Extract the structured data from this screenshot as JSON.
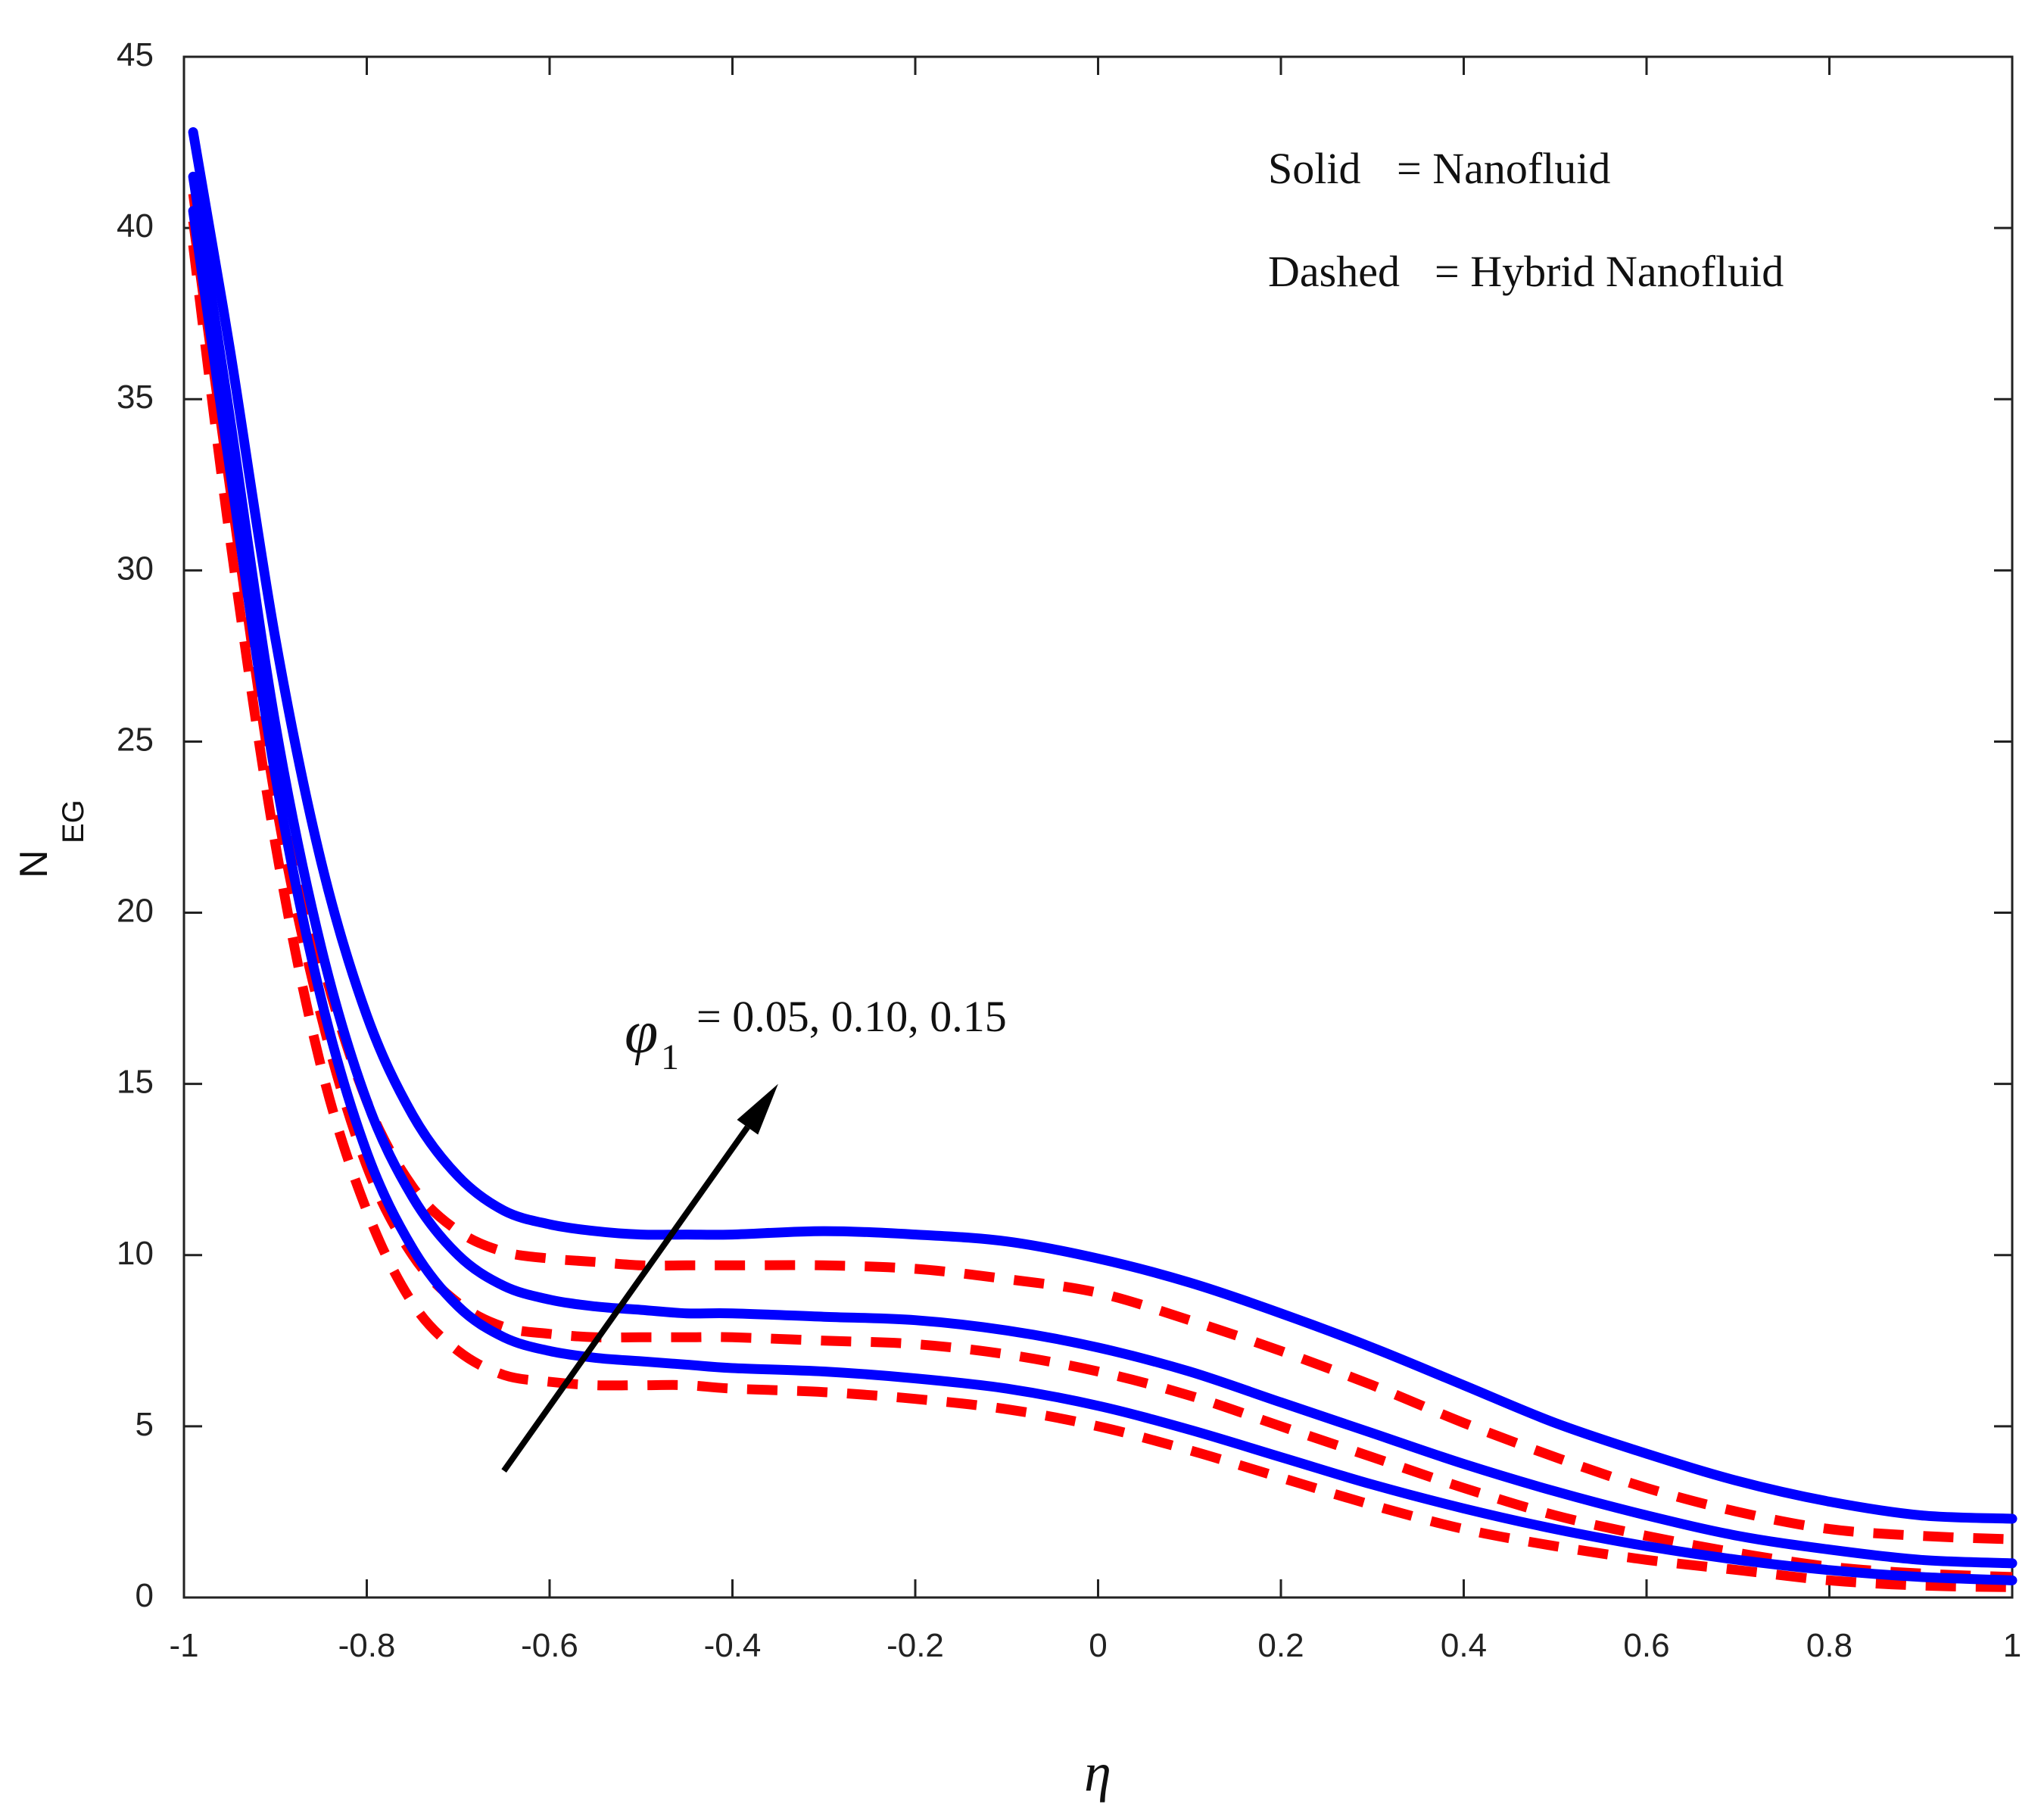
{
  "chart_data": {
    "type": "line",
    "title": "",
    "xlabel": "η",
    "ylabel_main": "N",
    "ylabel_sub": "EG",
    "xlim": [
      -1,
      1
    ],
    "ylim": [
      0,
      45
    ],
    "x_ticks": [
      -1,
      -0.8,
      -0.6,
      -0.4,
      -0.2,
      0,
      0.2,
      0.4,
      0.6,
      0.8,
      1
    ],
    "x_tick_labels": [
      "-1",
      "-0.8",
      "-0.6",
      "-0.4",
      "-0.2",
      "0",
      "0.2",
      "0.4",
      "0.6",
      "0.8",
      "1"
    ],
    "y_ticks": [
      0,
      5,
      10,
      15,
      20,
      25,
      30,
      35,
      40,
      45
    ],
    "y_tick_labels": [
      "0",
      "5",
      "10",
      "15",
      "20",
      "25",
      "30",
      "35",
      "40",
      "45"
    ],
    "grid": false,
    "legend": {
      "placement": "top-right",
      "solid_label": "Solid",
      "solid_value": "= Nanofluid",
      "dashed_label": "Dashed",
      "dashed_value": "= Hybrid Nanofluid"
    },
    "annotation": {
      "symbol": "φ",
      "subscript": "1",
      "text": "= 0.05, 0.10, 0.15",
      "arrow_from": {
        "x": -0.65,
        "y": 3.7
      },
      "arrow_to": {
        "x": -0.35,
        "y": 15
      }
    },
    "series": [
      {
        "name": "Nanofluid φ1 = 0.05",
        "style": "solid",
        "color": "#0000ff",
        "x": [
          -0.99,
          -0.95,
          -0.9,
          -0.85,
          -0.8,
          -0.75,
          -0.7,
          -0.65,
          -0.6,
          -0.55,
          -0.5,
          -0.45,
          -0.4,
          -0.3,
          -0.2,
          -0.1,
          0,
          0.1,
          0.2,
          0.3,
          0.4,
          0.5,
          0.6,
          0.7,
          0.8,
          0.9,
          1.0
        ],
        "y": [
          40.5,
          33,
          24,
          17.5,
          13,
          10.2,
          8.5,
          7.6,
          7.2,
          7.0,
          6.9,
          6.8,
          6.7,
          6.6,
          6.4,
          6.1,
          5.6,
          4.9,
          4.1,
          3.3,
          2.6,
          2.0,
          1.5,
          1.1,
          0.8,
          0.6,
          0.5
        ]
      },
      {
        "name": "Nanofluid φ1 = 0.10",
        "style": "solid",
        "color": "#0000ff",
        "x": [
          -0.99,
          -0.95,
          -0.9,
          -0.85,
          -0.8,
          -0.75,
          -0.7,
          -0.65,
          -0.6,
          -0.55,
          -0.5,
          -0.45,
          -0.4,
          -0.3,
          -0.2,
          -0.1,
          0,
          0.1,
          0.2,
          0.3,
          0.4,
          0.5,
          0.6,
          0.7,
          0.8,
          0.9,
          1.0
        ],
        "y": [
          41.5,
          34.5,
          25.5,
          19,
          14.5,
          11.7,
          10.0,
          9.1,
          8.7,
          8.5,
          8.4,
          8.3,
          8.3,
          8.2,
          8.1,
          7.8,
          7.3,
          6.6,
          5.7,
          4.8,
          3.9,
          3.1,
          2.4,
          1.8,
          1.4,
          1.1,
          1.0
        ]
      },
      {
        "name": "Nanofluid φ1 = 0.15",
        "style": "solid",
        "color": "#0000ff",
        "x": [
          -0.99,
          -0.95,
          -0.9,
          -0.85,
          -0.8,
          -0.75,
          -0.7,
          -0.65,
          -0.6,
          -0.55,
          -0.5,
          -0.45,
          -0.4,
          -0.3,
          -0.2,
          -0.1,
          0,
          0.1,
          0.2,
          0.3,
          0.4,
          0.5,
          0.6,
          0.7,
          0.8,
          0.9,
          1.0
        ],
        "y": [
          42.8,
          36.5,
          28,
          21.5,
          17,
          14.1,
          12.3,
          11.3,
          10.9,
          10.7,
          10.6,
          10.6,
          10.6,
          10.7,
          10.6,
          10.4,
          9.9,
          9.2,
          8.3,
          7.3,
          6.2,
          5.1,
          4.2,
          3.4,
          2.8,
          2.4,
          2.3
        ]
      },
      {
        "name": "Hybrid Nanofluid φ1 = 0.05",
        "style": "dashed",
        "color": "#ff0000",
        "x": [
          -0.99,
          -0.95,
          -0.9,
          -0.85,
          -0.8,
          -0.75,
          -0.7,
          -0.65,
          -0.6,
          -0.55,
          -0.5,
          -0.45,
          -0.4,
          -0.3,
          -0.2,
          -0.1,
          0,
          0.1,
          0.2,
          0.3,
          0.4,
          0.5,
          0.6,
          0.7,
          0.8,
          0.9,
          1.0
        ],
        "y": [
          39.5,
          31,
          22,
          15.5,
          11.3,
          8.6,
          7.2,
          6.5,
          6.3,
          6.2,
          6.2,
          6.2,
          6.1,
          6.0,
          5.8,
          5.5,
          5.0,
          4.3,
          3.5,
          2.7,
          2.0,
          1.5,
          1.1,
          0.8,
          0.5,
          0.35,
          0.3
        ]
      },
      {
        "name": "Hybrid Nanofluid φ1 = 0.10",
        "style": "dashed",
        "color": "#ff0000",
        "x": [
          -0.99,
          -0.95,
          -0.9,
          -0.85,
          -0.8,
          -0.75,
          -0.7,
          -0.65,
          -0.6,
          -0.55,
          -0.5,
          -0.45,
          -0.4,
          -0.3,
          -0.2,
          -0.1,
          0,
          0.1,
          0.2,
          0.3,
          0.4,
          0.5,
          0.6,
          0.7,
          0.8,
          0.9,
          1.0
        ],
        "y": [
          40.2,
          32.5,
          23.3,
          17,
          12.6,
          10.0,
          8.6,
          7.9,
          7.7,
          7.6,
          7.6,
          7.6,
          7.6,
          7.5,
          7.4,
          7.1,
          6.6,
          5.9,
          5.0,
          4.1,
          3.2,
          2.4,
          1.8,
          1.3,
          0.9,
          0.7,
          0.6
        ]
      },
      {
        "name": "Hybrid Nanofluid φ1 = 0.15",
        "style": "dashed",
        "color": "#ff0000",
        "x": [
          -0.99,
          -0.95,
          -0.9,
          -0.85,
          -0.8,
          -0.75,
          -0.7,
          -0.65,
          -0.6,
          -0.55,
          -0.5,
          -0.45,
          -0.4,
          -0.3,
          -0.2,
          -0.1,
          0,
          0.1,
          0.2,
          0.3,
          0.4,
          0.5,
          0.6,
          0.7,
          0.8,
          0.9,
          1.0
        ],
        "y": [
          41.0,
          33.5,
          24.8,
          18.7,
          14.5,
          12.0,
          10.7,
          10.1,
          9.9,
          9.8,
          9.7,
          9.7,
          9.7,
          9.7,
          9.6,
          9.3,
          8.9,
          8.1,
          7.2,
          6.2,
          5.1,
          4.1,
          3.2,
          2.5,
          2.0,
          1.8,
          1.7
        ]
      }
    ]
  }
}
